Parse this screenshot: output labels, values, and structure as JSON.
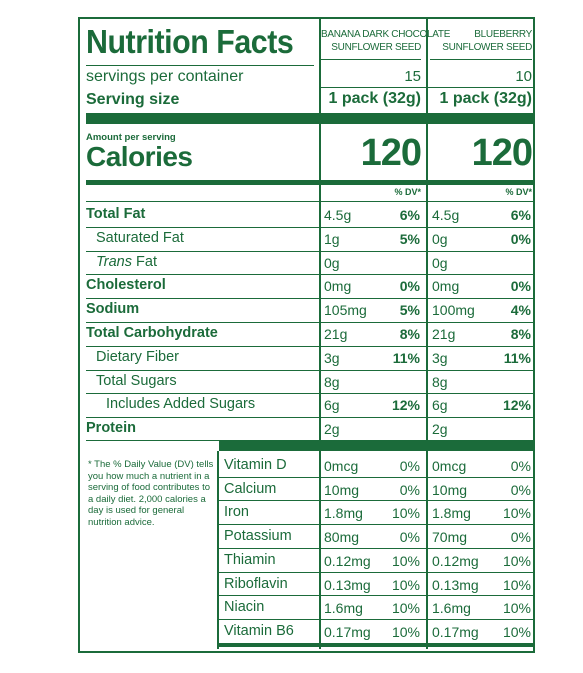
{
  "title": "Nutrition Facts",
  "products": [
    {
      "name_line1": "BANANA DARK CHOCOLATE",
      "name_line2": "SUNFLOWER SEED",
      "servings": "15",
      "serving_size": "1 pack (32g)",
      "calories": "120"
    },
    {
      "name_line1": "BLUEBERRY",
      "name_line2": "SUNFLOWER SEED",
      "servings": "10",
      "serving_size": "1 pack (32g)",
      "calories": "120"
    }
  ],
  "servings_label": "servings per container",
  "serving_size_label": "Serving size",
  "amount_per_serving": "Amount per serving",
  "calories_label": "Calories",
  "dv_header": "% DV*",
  "nutrients": [
    {
      "label": "Total Fat",
      "bold": true,
      "indent": 0,
      "italic_prefix": "",
      "p1_amt": "4.5g",
      "p1_dv": "6%",
      "p2_amt": "4.5g",
      "p2_dv": "6%"
    },
    {
      "label": "Saturated Fat",
      "bold": false,
      "indent": 1,
      "italic_prefix": "",
      "p1_amt": "1g",
      "p1_dv": "5%",
      "p2_amt": "0g",
      "p2_dv": "0%"
    },
    {
      "label": " Fat",
      "bold": false,
      "indent": 1,
      "italic_prefix": "Trans",
      "p1_amt": "0g",
      "p1_dv": "",
      "p2_amt": "0g",
      "p2_dv": ""
    },
    {
      "label": "Cholesterol",
      "bold": true,
      "indent": 0,
      "italic_prefix": "",
      "p1_amt": "0mg",
      "p1_dv": "0%",
      "p2_amt": "0mg",
      "p2_dv": "0%"
    },
    {
      "label": "Sodium",
      "bold": true,
      "indent": 0,
      "italic_prefix": "",
      "p1_amt": "105mg",
      "p1_dv": "5%",
      "p2_amt": "100mg",
      "p2_dv": "4%"
    },
    {
      "label": "Total Carbohydrate",
      "bold": true,
      "indent": 0,
      "italic_prefix": "",
      "p1_amt": "21g",
      "p1_dv": "8%",
      "p2_amt": "21g",
      "p2_dv": "8%"
    },
    {
      "label": "Dietary Fiber",
      "bold": false,
      "indent": 1,
      "italic_prefix": "",
      "p1_amt": "3g",
      "p1_dv": "11%",
      "p2_amt": "3g",
      "p2_dv": "11%"
    },
    {
      "label": "Total Sugars",
      "bold": false,
      "indent": 1,
      "italic_prefix": "",
      "p1_amt": "8g",
      "p1_dv": "",
      "p2_amt": "8g",
      "p2_dv": ""
    },
    {
      "label": "Includes Added Sugars",
      "bold": false,
      "indent": 2,
      "italic_prefix": "",
      "p1_amt": "6g",
      "p1_dv": "12%",
      "p2_amt": "6g",
      "p2_dv": "12%"
    },
    {
      "label": "Protein",
      "bold": true,
      "indent": 0,
      "italic_prefix": "",
      "p1_amt": "2g",
      "p1_dv": "",
      "p2_amt": "2g",
      "p2_dv": ""
    }
  ],
  "vitamins": [
    {
      "label": "Vitamin D",
      "p1_amt": "0mcg",
      "p1_dv": "0%",
      "p2_amt": "0mcg",
      "p2_dv": "0%"
    },
    {
      "label": "Calcium",
      "p1_amt": "10mg",
      "p1_dv": "0%",
      "p2_amt": "10mg",
      "p2_dv": "0%"
    },
    {
      "label": "Iron",
      "p1_amt": "1.8mg",
      "p1_dv": "10%",
      "p2_amt": "1.8mg",
      "p2_dv": "10%"
    },
    {
      "label": "Potassium",
      "p1_amt": "80mg",
      "p1_dv": "0%",
      "p2_amt": "70mg",
      "p2_dv": "0%"
    },
    {
      "label": "Thiamin",
      "p1_amt": "0.12mg",
      "p1_dv": "10%",
      "p2_amt": "0.12mg",
      "p2_dv": "10%"
    },
    {
      "label": "Riboflavin",
      "p1_amt": "0.13mg",
      "p1_dv": "10%",
      "p2_amt": "0.13mg",
      "p2_dv": "10%"
    },
    {
      "label": "Niacin",
      "p1_amt": "1.6mg",
      "p1_dv": "10%",
      "p2_amt": "1.6mg",
      "p2_dv": "10%"
    },
    {
      "label": "Vitamin B6",
      "p1_amt": "0.17mg",
      "p1_dv": "10%",
      "p2_amt": "0.17mg",
      "p2_dv": "10%"
    }
  ],
  "footnote": "* The % Daily Value (DV) tells you how much a nutrient in a serving of food contributes to a daily diet. 2,000 calories a day is used for general nutrition advice.",
  "colors": {
    "ink": "#1b6b3a",
    "background": "#ffffff"
  }
}
